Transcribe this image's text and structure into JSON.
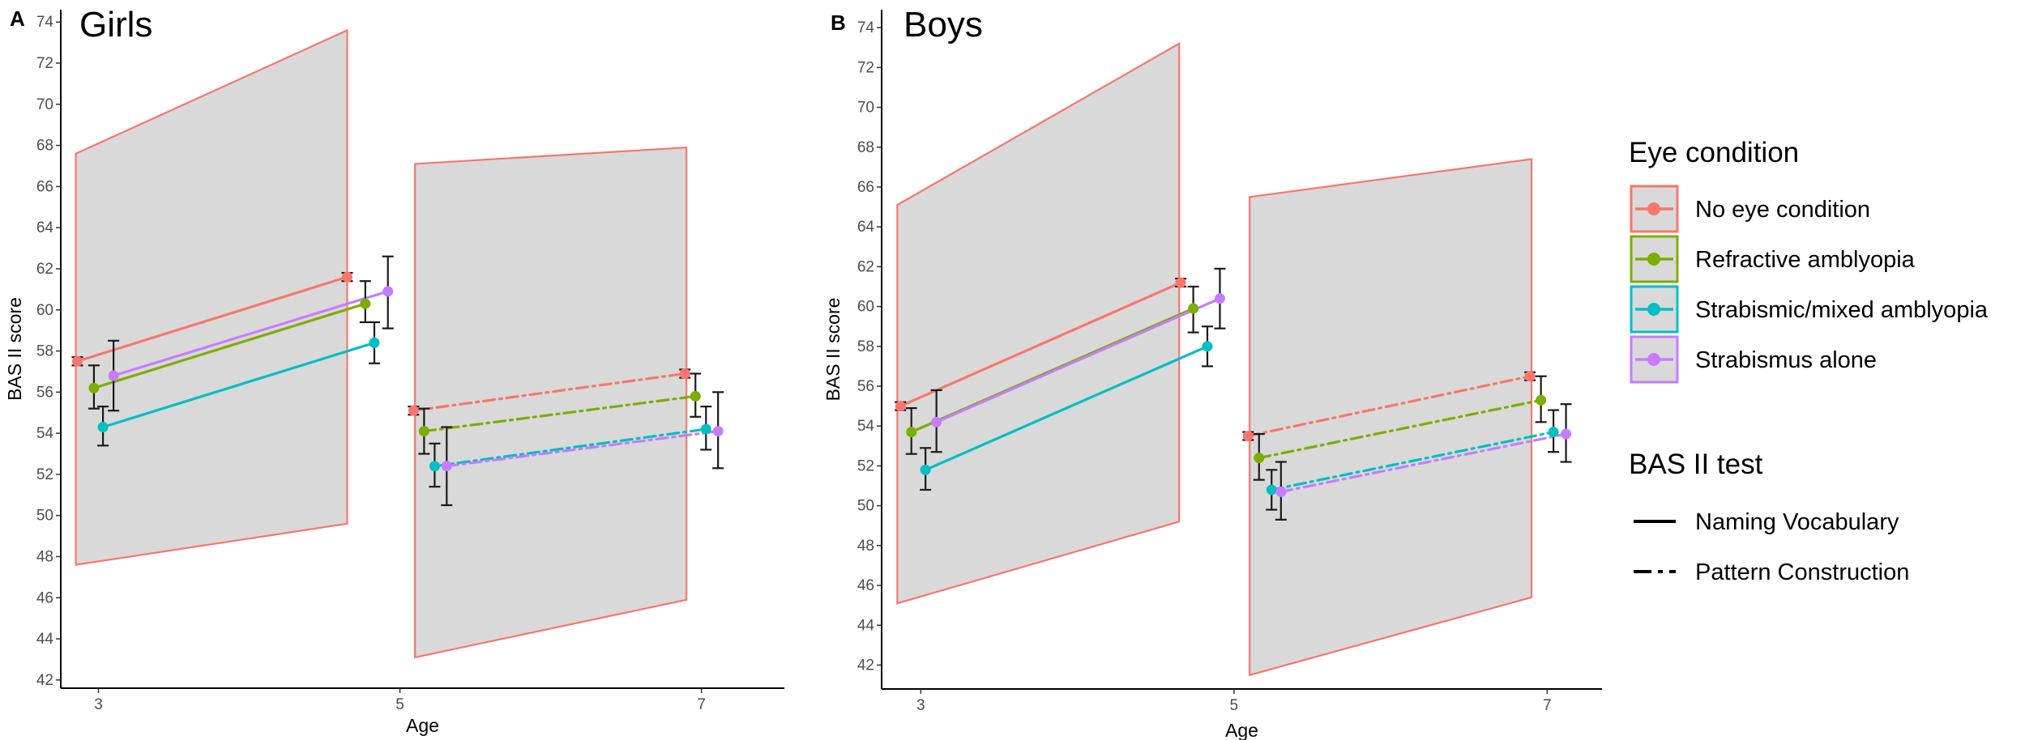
{
  "chart_data": [
    {
      "type": "line",
      "panel_letter": "A",
      "title": "Girls",
      "xlabel": "Age",
      "ylabel": "BAS II score",
      "xlim": [
        2.75,
        7.55
      ],
      "ylim": [
        41.6,
        74.6
      ],
      "xticks": [
        3,
        5,
        7
      ],
      "yticks": [
        42,
        44,
        46,
        48,
        50,
        52,
        54,
        56,
        58,
        60,
        62,
        64,
        66,
        68,
        70,
        72,
        74
      ],
      "grid": false,
      "ranges": [
        {
          "test": "Naming Vocabulary",
          "x": [
            2.85,
            4.65
          ],
          "lower": [
            47.6,
            49.6
          ],
          "upper": [
            67.6,
            73.6
          ]
        },
        {
          "test": "Pattern Construction",
          "x": [
            5.1,
            6.9
          ],
          "lower": [
            43.1,
            45.9
          ],
          "upper": [
            67.1,
            67.9
          ]
        }
      ],
      "series": [
        {
          "group": "No eye condition",
          "test": "Naming Vocabulary",
          "x": [
            2.86,
            4.65
          ],
          "y": [
            57.5,
            61.6
          ],
          "err_low": [
            57.3,
            61.4
          ],
          "err_high": [
            57.7,
            61.8
          ]
        },
        {
          "group": "Refractive amblyopia",
          "test": "Naming Vocabulary",
          "x": [
            2.97,
            4.77
          ],
          "y": [
            56.2,
            60.3
          ],
          "err_low": [
            55.2,
            59.4
          ],
          "err_high": [
            57.3,
            61.4
          ]
        },
        {
          "group": "Strabismic/mixed amblyopia",
          "test": "Naming Vocabulary",
          "x": [
            3.03,
            4.83
          ],
          "y": [
            54.3,
            58.4
          ],
          "err_low": [
            53.4,
            57.4
          ],
          "err_high": [
            55.3,
            59.4
          ]
        },
        {
          "group": "Strabismus alone",
          "test": "Naming Vocabulary",
          "x": [
            3.1,
            4.92
          ],
          "y": [
            56.8,
            60.9
          ],
          "err_low": [
            55.1,
            59.1
          ],
          "err_high": [
            58.5,
            62.6
          ]
        },
        {
          "group": "No eye condition",
          "test": "Pattern Construction",
          "x": [
            5.09,
            6.89
          ],
          "y": [
            55.1,
            56.9
          ],
          "err_low": [
            54.9,
            56.7
          ],
          "err_high": [
            55.3,
            57.1
          ]
        },
        {
          "group": "Refractive amblyopia",
          "test": "Pattern Construction",
          "x": [
            5.16,
            6.96
          ],
          "y": [
            54.1,
            55.8
          ],
          "err_low": [
            53.0,
            54.8
          ],
          "err_high": [
            55.2,
            56.9
          ]
        },
        {
          "group": "Strabismic/mixed amblyopia",
          "test": "Pattern Construction",
          "x": [
            5.23,
            7.03
          ],
          "y": [
            52.4,
            54.2
          ],
          "err_low": [
            51.4,
            53.2
          ],
          "err_high": [
            53.5,
            55.3
          ]
        },
        {
          "group": "Strabismus alone",
          "test": "Pattern Construction",
          "x": [
            5.31,
            7.11
          ],
          "y": [
            52.4,
            54.1
          ],
          "err_low": [
            50.5,
            52.3
          ],
          "err_high": [
            54.3,
            56.0
          ]
        }
      ]
    },
    {
      "type": "line",
      "panel_letter": "B",
      "title": "Boys",
      "xlabel": "Age",
      "ylabel": "BAS II score",
      "xlim": [
        2.75,
        7.35
      ],
      "ylim": [
        40.8,
        74.9
      ],
      "xticks": [
        3,
        5,
        7
      ],
      "yticks": [
        42,
        44,
        46,
        48,
        50,
        52,
        54,
        56,
        58,
        60,
        62,
        64,
        66,
        68,
        70,
        72,
        74
      ],
      "grid": false,
      "ranges": [
        {
          "test": "Naming Vocabulary",
          "x": [
            2.85,
            4.65
          ],
          "lower": [
            45.1,
            49.2
          ],
          "upper": [
            65.1,
            73.2
          ]
        },
        {
          "test": "Pattern Construction",
          "x": [
            5.1,
            6.9
          ],
          "lower": [
            41.5,
            45.4
          ],
          "upper": [
            65.5,
            67.4
          ]
        }
      ],
      "series": [
        {
          "group": "No eye condition",
          "test": "Naming Vocabulary",
          "x": [
            2.87,
            4.66
          ],
          "y": [
            55.0,
            61.2
          ],
          "err_low": [
            54.8,
            61.0
          ],
          "err_high": [
            55.2,
            61.4
          ]
        },
        {
          "group": "Refractive amblyopia",
          "test": "Naming Vocabulary",
          "x": [
            2.94,
            4.74
          ],
          "y": [
            53.7,
            59.9
          ],
          "err_low": [
            52.6,
            58.7
          ],
          "err_high": [
            54.9,
            61.0
          ]
        },
        {
          "group": "Strabismic/mixed amblyopia",
          "test": "Naming Vocabulary",
          "x": [
            3.03,
            4.83
          ],
          "y": [
            51.8,
            58.0
          ],
          "err_low": [
            50.8,
            57.0
          ],
          "err_high": [
            52.9,
            59.0
          ]
        },
        {
          "group": "Strabismus alone",
          "test": "Naming Vocabulary",
          "x": [
            3.1,
            4.91
          ],
          "y": [
            54.2,
            60.4
          ],
          "err_low": [
            52.7,
            58.9
          ],
          "err_high": [
            55.8,
            61.9
          ]
        },
        {
          "group": "No eye condition",
          "test": "Pattern Construction",
          "x": [
            5.09,
            6.89
          ],
          "y": [
            53.5,
            56.5
          ],
          "err_low": [
            53.3,
            56.3
          ],
          "err_high": [
            53.7,
            56.7
          ]
        },
        {
          "group": "Refractive amblyopia",
          "test": "Pattern Construction",
          "x": [
            5.16,
            6.96
          ],
          "y": [
            52.4,
            55.3
          ],
          "err_low": [
            51.3,
            54.2
          ],
          "err_high": [
            53.6,
            56.5
          ]
        },
        {
          "group": "Strabismic/mixed amblyopia",
          "test": "Pattern Construction",
          "x": [
            5.24,
            7.04
          ],
          "y": [
            50.8,
            53.7
          ],
          "err_low": [
            49.8,
            52.7
          ],
          "err_high": [
            51.8,
            54.8
          ]
        },
        {
          "group": "Strabismus alone",
          "test": "Pattern Construction",
          "x": [
            5.3,
            7.12
          ],
          "y": [
            50.7,
            53.6
          ],
          "err_low": [
            49.3,
            52.2
          ],
          "err_high": [
            52.2,
            55.1
          ]
        }
      ]
    }
  ],
  "legend": {
    "placement": "right",
    "eye_title": "Eye condition",
    "eye_items": [
      {
        "label": "No eye condition",
        "color": "#F8766D"
      },
      {
        "label": "Refractive amblyopia",
        "color": "#7CAE00"
      },
      {
        "label": "Strabismic/mixed amblyopia",
        "color": "#00BFC4"
      },
      {
        "label": "Strabismus alone",
        "color": "#C77CFF"
      }
    ],
    "test_title": "BAS II test",
    "test_items": [
      {
        "label": "Naming Vocabulary",
        "linetype": "solid"
      },
      {
        "label": "Pattern Construction",
        "linetype": "dashdot"
      }
    ]
  },
  "colors": {
    "range_fill": "#d9d9d9",
    "range_stroke": "#F8766D",
    "errorbar": "#1a1a1a",
    "axis": "#000000"
  }
}
